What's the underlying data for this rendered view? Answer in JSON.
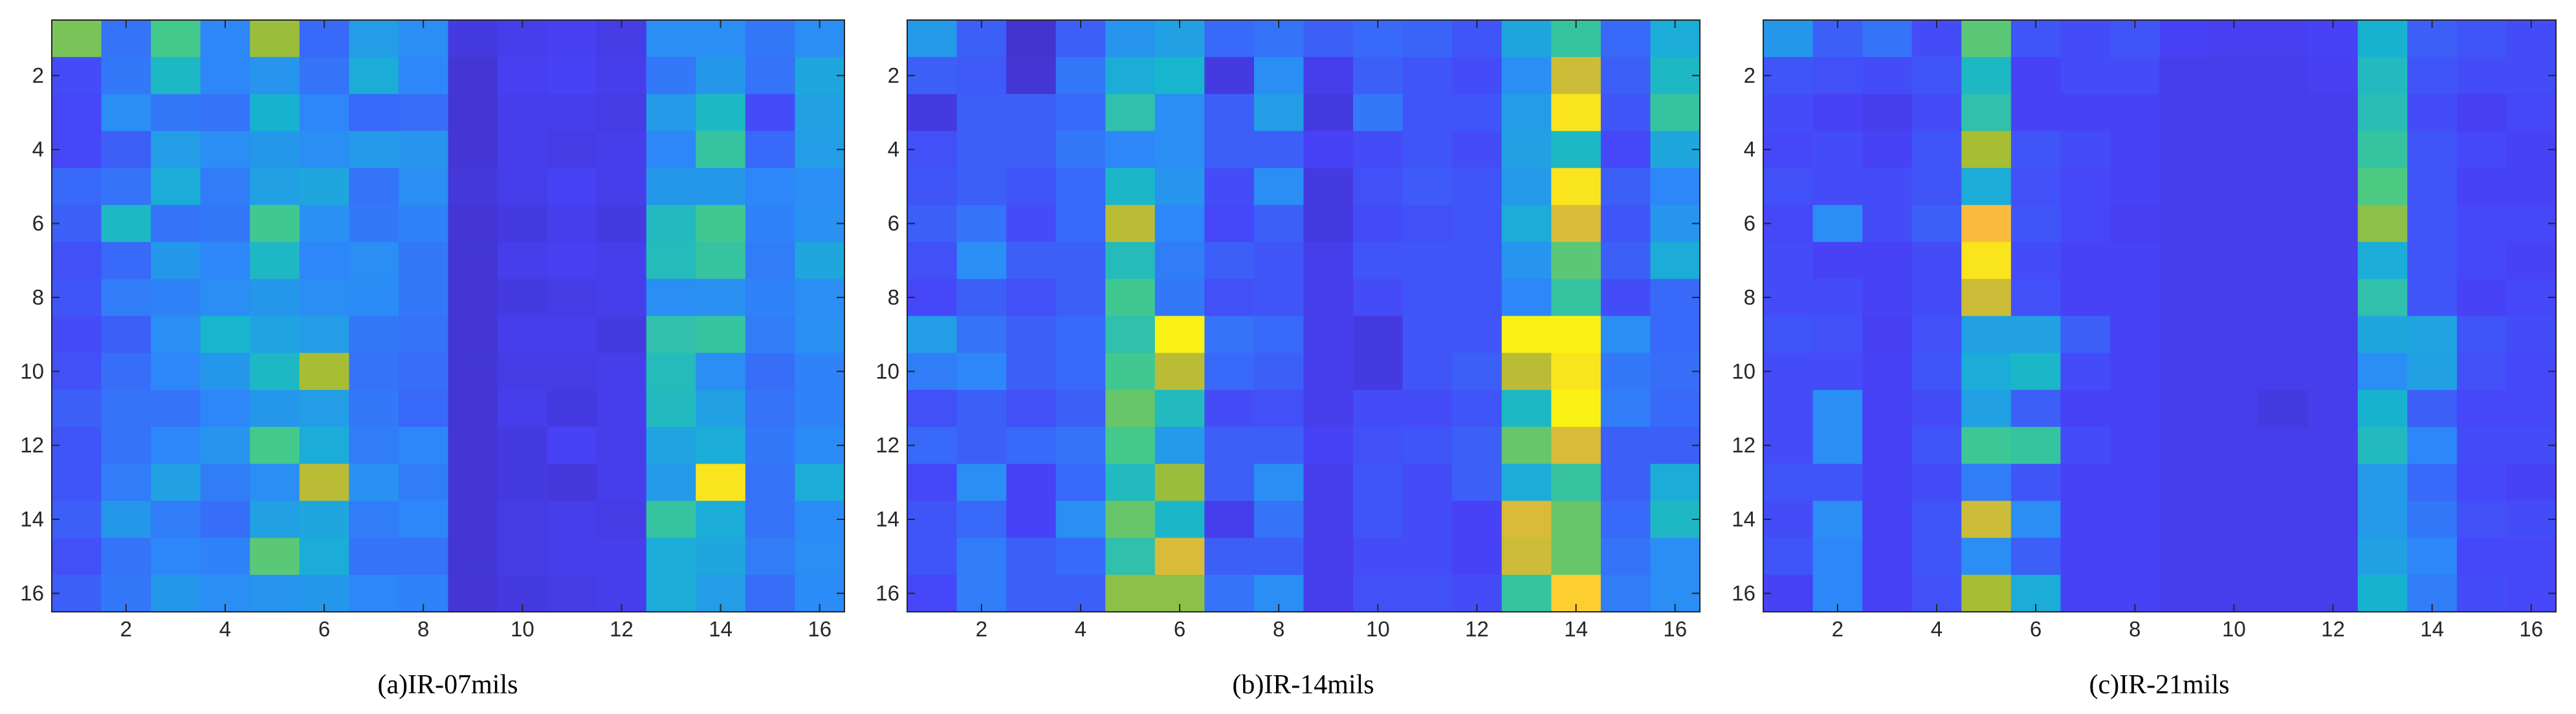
{
  "figure": {
    "colormap": "parula",
    "colormap_stops": [
      "#3E26A8",
      "#4743F8",
      "#2C8AF8",
      "#17B5CF",
      "#48CB86",
      "#A3BD34",
      "#FDBA3D",
      "#F9FB0E"
    ],
    "background": "#FFFFFF"
  },
  "chart_data": [
    {
      "type": "heatmap",
      "title": "",
      "caption": "(a)IR-07mils",
      "xlabel": "",
      "ylabel": "",
      "xlim": [
        0.5,
        16.5
      ],
      "ylim": [
        0.5,
        16.5
      ],
      "y_direction": "reverse",
      "xticks": [
        2,
        4,
        6,
        8,
        10,
        12,
        14,
        16
      ],
      "yticks": [
        2,
        4,
        6,
        8,
        10,
        12,
        14,
        16
      ],
      "color_range": [
        0,
        1
      ],
      "values": [
        [
          0.65,
          0.24,
          0.56,
          0.28,
          0.7,
          0.22,
          0.35,
          0.3,
          0.1,
          0.12,
          0.13,
          0.11,
          0.3,
          0.3,
          0.25,
          0.3
        ],
        [
          0.16,
          0.25,
          0.45,
          0.28,
          0.32,
          0.24,
          0.4,
          0.28,
          0.08,
          0.13,
          0.14,
          0.12,
          0.25,
          0.33,
          0.24,
          0.38
        ],
        [
          0.15,
          0.3,
          0.25,
          0.24,
          0.42,
          0.28,
          0.22,
          0.23,
          0.08,
          0.12,
          0.12,
          0.11,
          0.34,
          0.45,
          0.16,
          0.36
        ],
        [
          0.15,
          0.2,
          0.35,
          0.3,
          0.33,
          0.3,
          0.34,
          0.32,
          0.08,
          0.12,
          0.11,
          0.12,
          0.28,
          0.52,
          0.22,
          0.35
        ],
        [
          0.22,
          0.24,
          0.4,
          0.26,
          0.36,
          0.38,
          0.24,
          0.3,
          0.09,
          0.12,
          0.14,
          0.12,
          0.33,
          0.33,
          0.28,
          0.3
        ],
        [
          0.2,
          0.45,
          0.24,
          0.25,
          0.55,
          0.31,
          0.25,
          0.27,
          0.08,
          0.1,
          0.12,
          0.1,
          0.46,
          0.55,
          0.27,
          0.31
        ],
        [
          0.17,
          0.22,
          0.33,
          0.28,
          0.45,
          0.28,
          0.3,
          0.25,
          0.08,
          0.12,
          0.13,
          0.12,
          0.47,
          0.52,
          0.26,
          0.38
        ],
        [
          0.18,
          0.26,
          0.27,
          0.3,
          0.33,
          0.3,
          0.29,
          0.25,
          0.08,
          0.1,
          0.11,
          0.12,
          0.3,
          0.31,
          0.27,
          0.3
        ],
        [
          0.16,
          0.2,
          0.3,
          0.43,
          0.37,
          0.35,
          0.25,
          0.24,
          0.08,
          0.12,
          0.12,
          0.1,
          0.5,
          0.52,
          0.26,
          0.31
        ],
        [
          0.17,
          0.23,
          0.28,
          0.33,
          0.45,
          0.72,
          0.24,
          0.23,
          0.08,
          0.11,
          0.11,
          0.12,
          0.47,
          0.3,
          0.23,
          0.27
        ],
        [
          0.2,
          0.24,
          0.24,
          0.28,
          0.33,
          0.35,
          0.25,
          0.22,
          0.08,
          0.12,
          0.1,
          0.12,
          0.46,
          0.36,
          0.24,
          0.27
        ],
        [
          0.18,
          0.24,
          0.28,
          0.32,
          0.56,
          0.4,
          0.26,
          0.28,
          0.08,
          0.1,
          0.14,
          0.12,
          0.37,
          0.4,
          0.25,
          0.29
        ],
        [
          0.18,
          0.26,
          0.36,
          0.26,
          0.3,
          0.75,
          0.31,
          0.26,
          0.08,
          0.1,
          0.09,
          0.12,
          0.34,
          0.95,
          0.24,
          0.4
        ],
        [
          0.2,
          0.33,
          0.26,
          0.23,
          0.36,
          0.38,
          0.26,
          0.28,
          0.08,
          0.11,
          0.12,
          0.11,
          0.52,
          0.4,
          0.24,
          0.29
        ],
        [
          0.17,
          0.24,
          0.28,
          0.27,
          0.6,
          0.4,
          0.24,
          0.24,
          0.08,
          0.11,
          0.12,
          0.12,
          0.4,
          0.38,
          0.26,
          0.3
        ],
        [
          0.2,
          0.25,
          0.33,
          0.3,
          0.32,
          0.33,
          0.28,
          0.27,
          0.08,
          0.1,
          0.11,
          0.12,
          0.4,
          0.35,
          0.23,
          0.29
        ]
      ]
    },
    {
      "type": "heatmap",
      "title": "",
      "caption": "(b)IR-14mils",
      "xlabel": "",
      "ylabel": "",
      "xlim": [
        0.5,
        16.5
      ],
      "ylim": [
        0.5,
        16.5
      ],
      "y_direction": "reverse",
      "xticks": [
        2,
        4,
        6,
        8,
        10,
        12,
        14,
        16
      ],
      "yticks": [
        2,
        4,
        6,
        8,
        10,
        12,
        14,
        16
      ],
      "color_range": [
        0,
        1
      ],
      "values": [
        [
          0.34,
          0.2,
          0.07,
          0.2,
          0.32,
          0.36,
          0.22,
          0.24,
          0.2,
          0.22,
          0.21,
          0.18,
          0.38,
          0.52,
          0.22,
          0.4
        ],
        [
          0.2,
          0.19,
          0.08,
          0.25,
          0.4,
          0.43,
          0.1,
          0.3,
          0.12,
          0.2,
          0.18,
          0.16,
          0.3,
          0.78,
          0.2,
          0.45
        ],
        [
          0.1,
          0.2,
          0.2,
          0.22,
          0.5,
          0.3,
          0.2,
          0.35,
          0.1,
          0.25,
          0.18,
          0.18,
          0.35,
          0.95,
          0.18,
          0.52
        ],
        [
          0.17,
          0.2,
          0.2,
          0.25,
          0.28,
          0.3,
          0.2,
          0.2,
          0.14,
          0.16,
          0.18,
          0.16,
          0.36,
          0.45,
          0.15,
          0.38
        ],
        [
          0.18,
          0.2,
          0.18,
          0.22,
          0.44,
          0.32,
          0.16,
          0.3,
          0.1,
          0.17,
          0.19,
          0.18,
          0.34,
          0.95,
          0.2,
          0.28
        ],
        [
          0.2,
          0.24,
          0.16,
          0.22,
          0.75,
          0.28,
          0.15,
          0.2,
          0.1,
          0.16,
          0.17,
          0.18,
          0.4,
          0.8,
          0.18,
          0.32
        ],
        [
          0.17,
          0.3,
          0.2,
          0.2,
          0.47,
          0.26,
          0.2,
          0.18,
          0.12,
          0.18,
          0.18,
          0.18,
          0.32,
          0.6,
          0.2,
          0.4
        ],
        [
          0.15,
          0.2,
          0.17,
          0.2,
          0.55,
          0.25,
          0.17,
          0.18,
          0.12,
          0.16,
          0.18,
          0.18,
          0.28,
          0.52,
          0.16,
          0.22
        ],
        [
          0.35,
          0.24,
          0.2,
          0.22,
          0.5,
          0.98,
          0.24,
          0.22,
          0.12,
          0.1,
          0.18,
          0.18,
          0.98,
          0.98,
          0.3,
          0.22
        ],
        [
          0.26,
          0.28,
          0.2,
          0.22,
          0.55,
          0.75,
          0.22,
          0.2,
          0.12,
          0.1,
          0.18,
          0.2,
          0.75,
          0.95,
          0.25,
          0.23
        ],
        [
          0.17,
          0.2,
          0.17,
          0.2,
          0.62,
          0.46,
          0.16,
          0.17,
          0.12,
          0.16,
          0.16,
          0.18,
          0.45,
          0.98,
          0.26,
          0.22
        ],
        [
          0.22,
          0.2,
          0.22,
          0.24,
          0.56,
          0.34,
          0.2,
          0.2,
          0.14,
          0.17,
          0.18,
          0.2,
          0.62,
          0.8,
          0.2,
          0.2
        ],
        [
          0.15,
          0.3,
          0.14,
          0.22,
          0.46,
          0.7,
          0.2,
          0.3,
          0.12,
          0.18,
          0.16,
          0.2,
          0.4,
          0.52,
          0.2,
          0.4
        ],
        [
          0.18,
          0.22,
          0.14,
          0.3,
          0.62,
          0.44,
          0.12,
          0.24,
          0.12,
          0.18,
          0.16,
          0.14,
          0.8,
          0.62,
          0.22,
          0.45
        ],
        [
          0.18,
          0.26,
          0.2,
          0.22,
          0.5,
          0.8,
          0.2,
          0.2,
          0.12,
          0.16,
          0.16,
          0.14,
          0.78,
          0.62,
          0.24,
          0.3
        ],
        [
          0.15,
          0.26,
          0.2,
          0.2,
          0.68,
          0.68,
          0.24,
          0.3,
          0.12,
          0.17,
          0.17,
          0.16,
          0.52,
          0.9,
          0.26,
          0.3
        ]
      ]
    },
    {
      "type": "heatmap",
      "title": "",
      "caption": "(c)IR-21mils",
      "xlabel": "",
      "ylabel": "",
      "xlim": [
        0.5,
        16.5
      ],
      "ylim": [
        0.5,
        16.5
      ],
      "y_direction": "reverse",
      "xticks": [
        2,
        4,
        6,
        8,
        10,
        12,
        14,
        16
      ],
      "yticks": [
        2,
        4,
        6,
        8,
        10,
        12,
        14,
        16
      ],
      "color_range": [
        0,
        1
      ],
      "values": [
        [
          0.33,
          0.2,
          0.24,
          0.16,
          0.6,
          0.18,
          0.16,
          0.18,
          0.14,
          0.13,
          0.13,
          0.14,
          0.42,
          0.2,
          0.18,
          0.16
        ],
        [
          0.18,
          0.17,
          0.16,
          0.18,
          0.45,
          0.14,
          0.16,
          0.16,
          0.12,
          0.12,
          0.12,
          0.13,
          0.46,
          0.18,
          0.16,
          0.16
        ],
        [
          0.16,
          0.14,
          0.12,
          0.16,
          0.5,
          0.14,
          0.14,
          0.14,
          0.12,
          0.12,
          0.12,
          0.12,
          0.48,
          0.16,
          0.13,
          0.15
        ],
        [
          0.15,
          0.16,
          0.14,
          0.18,
          0.72,
          0.18,
          0.16,
          0.14,
          0.12,
          0.12,
          0.12,
          0.12,
          0.52,
          0.18,
          0.15,
          0.14
        ],
        [
          0.17,
          0.16,
          0.16,
          0.18,
          0.4,
          0.17,
          0.15,
          0.14,
          0.12,
          0.12,
          0.12,
          0.12,
          0.58,
          0.18,
          0.14,
          0.14
        ],
        [
          0.15,
          0.3,
          0.16,
          0.2,
          0.85,
          0.18,
          0.15,
          0.13,
          0.12,
          0.12,
          0.12,
          0.12,
          0.68,
          0.18,
          0.15,
          0.15
        ],
        [
          0.16,
          0.14,
          0.14,
          0.16,
          0.95,
          0.16,
          0.14,
          0.14,
          0.12,
          0.12,
          0.12,
          0.12,
          0.4,
          0.18,
          0.15,
          0.14
        ],
        [
          0.16,
          0.16,
          0.14,
          0.16,
          0.78,
          0.17,
          0.14,
          0.14,
          0.12,
          0.12,
          0.12,
          0.12,
          0.5,
          0.18,
          0.14,
          0.15
        ],
        [
          0.18,
          0.17,
          0.13,
          0.17,
          0.36,
          0.36,
          0.2,
          0.14,
          0.12,
          0.12,
          0.12,
          0.12,
          0.38,
          0.37,
          0.18,
          0.16
        ],
        [
          0.16,
          0.16,
          0.14,
          0.18,
          0.4,
          0.44,
          0.16,
          0.14,
          0.12,
          0.12,
          0.12,
          0.12,
          0.3,
          0.36,
          0.17,
          0.15
        ],
        [
          0.16,
          0.3,
          0.14,
          0.16,
          0.36,
          0.2,
          0.14,
          0.14,
          0.12,
          0.12,
          0.1,
          0.12,
          0.42,
          0.2,
          0.15,
          0.15
        ],
        [
          0.16,
          0.3,
          0.14,
          0.18,
          0.54,
          0.52,
          0.16,
          0.14,
          0.12,
          0.12,
          0.12,
          0.12,
          0.46,
          0.28,
          0.16,
          0.16
        ],
        [
          0.18,
          0.18,
          0.14,
          0.16,
          0.26,
          0.18,
          0.14,
          0.14,
          0.12,
          0.12,
          0.12,
          0.12,
          0.34,
          0.22,
          0.15,
          0.14
        ],
        [
          0.16,
          0.3,
          0.14,
          0.18,
          0.78,
          0.3,
          0.14,
          0.14,
          0.12,
          0.12,
          0.12,
          0.12,
          0.34,
          0.25,
          0.17,
          0.16
        ],
        [
          0.18,
          0.28,
          0.14,
          0.18,
          0.3,
          0.2,
          0.14,
          0.14,
          0.12,
          0.12,
          0.12,
          0.12,
          0.36,
          0.28,
          0.15,
          0.15
        ],
        [
          0.14,
          0.28,
          0.14,
          0.17,
          0.72,
          0.4,
          0.14,
          0.14,
          0.12,
          0.12,
          0.12,
          0.12,
          0.42,
          0.26,
          0.16,
          0.15
        ]
      ]
    }
  ]
}
